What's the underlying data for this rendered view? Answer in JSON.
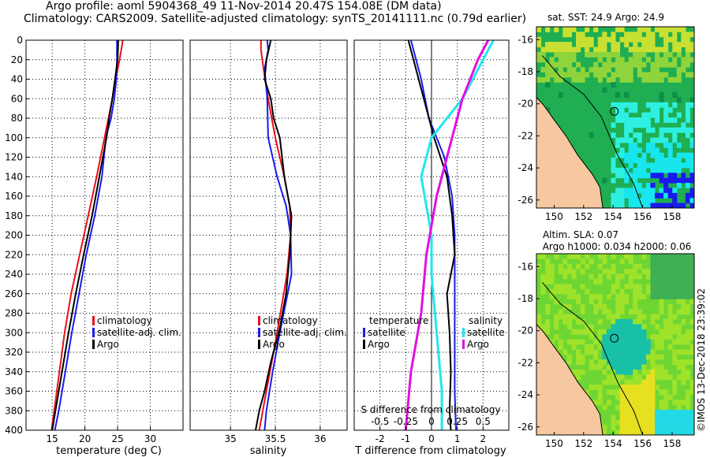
{
  "header": {
    "line1": "Argo profile: aoml 5904368_49 11-Nov-2014 20.47S 154.08E (DM data)",
    "line2": "Climatology: CARS2009. Satellite-adjusted climatology: synTS_20141111.nc (0.79d earlier)"
  },
  "colors": {
    "red": "#e8101a",
    "blue": "#1a1aee",
    "black": "#000000",
    "cyan": "#22e6ee",
    "magenta": "#e010e0",
    "land": "#f5c8a0"
  },
  "chart_data": [
    {
      "type": "line",
      "name": "temperature",
      "xlabel": "temperature (deg C)",
      "ylabel": "",
      "xlim": [
        11,
        35
      ],
      "ylim": [
        400,
        0
      ],
      "xticks": [
        15,
        20,
        25,
        30
      ],
      "yticks": [
        0,
        20,
        40,
        60,
        80,
        100,
        120,
        140,
        160,
        180,
        200,
        220,
        240,
        260,
        280,
        300,
        320,
        340,
        360,
        380,
        400
      ],
      "legend": [
        "climatology",
        "satellite-adj. clim.",
        "Argo"
      ],
      "series": [
        {
          "name": "climatology",
          "color": "red",
          "depth": [
            0,
            20,
            40,
            60,
            80,
            100,
            140,
            180,
            220,
            260,
            300,
            340,
            380,
            400
          ],
          "values": [
            25.8,
            25.3,
            24.7,
            24.2,
            23.6,
            23.0,
            21.8,
            20.5,
            19.2,
            17.9,
            16.9,
            16.1,
            15.3,
            14.9
          ]
        },
        {
          "name": "satellite-adj. clim.",
          "color": "blue",
          "depth": [
            0,
            20,
            40,
            60,
            80,
            100,
            140,
            180,
            220,
            260,
            300,
            340,
            380,
            400
          ],
          "values": [
            24.9,
            24.9,
            24.8,
            24.5,
            24.0,
            23.2,
            22.6,
            21.5,
            20.2,
            19.1,
            18.0,
            17.0,
            16.0,
            15.4
          ]
        },
        {
          "name": "Argo",
          "color": "black",
          "depth": [
            0,
            20,
            40,
            60,
            80,
            100,
            140,
            180,
            220,
            260,
            300,
            340,
            380,
            400
          ],
          "values": [
            25.1,
            25.0,
            24.6,
            24.2,
            23.7,
            23.3,
            22.2,
            21.1,
            19.8,
            18.6,
            17.5,
            16.5,
            15.5,
            15.0
          ]
        }
      ]
    },
    {
      "type": "line",
      "name": "salinity",
      "xlabel": "salinity",
      "ylabel": "",
      "xlim": [
        34.55,
        36.3
      ],
      "ylim": [
        400,
        0
      ],
      "xticks": [
        35,
        35.5,
        36
      ],
      "xtick_labels": [
        "35",
        "35.5",
        "36"
      ],
      "legend": [
        "climatology",
        "satellite-adj. clim.",
        "Argo"
      ],
      "series": [
        {
          "name": "climatology",
          "color": "red",
          "depth": [
            0,
            10,
            30,
            60,
            100,
            140,
            170,
            200,
            240,
            300,
            340,
            380,
            400
          ],
          "values": [
            35.34,
            35.34,
            35.37,
            35.42,
            35.5,
            35.6,
            35.66,
            35.67,
            35.63,
            35.52,
            35.44,
            35.36,
            35.32
          ]
        },
        {
          "name": "satellite-adj. clim.",
          "color": "blue",
          "depth": [
            0,
            10,
            30,
            60,
            100,
            140,
            170,
            200,
            240,
            300,
            340,
            380,
            400
          ],
          "values": [
            35.41,
            35.42,
            35.38,
            35.41,
            35.42,
            35.52,
            35.62,
            35.67,
            35.68,
            35.55,
            35.47,
            35.4,
            35.38
          ]
        },
        {
          "name": "Argo",
          "color": "black",
          "depth": [
            0,
            20,
            40,
            60,
            80,
            100,
            140,
            180,
            220,
            260,
            300,
            330,
            360,
            380,
            400
          ],
          "values": [
            35.45,
            35.4,
            35.38,
            35.45,
            35.48,
            35.55,
            35.6,
            35.68,
            35.66,
            35.62,
            35.54,
            35.45,
            35.38,
            35.32,
            35.28
          ]
        }
      ]
    },
    {
      "type": "line",
      "name": "difference",
      "xlabel": "T difference from climatology",
      "xlabel2": "S difference from climatology",
      "xlim": [
        -3.0,
        3.0
      ],
      "ylim": [
        400,
        0
      ],
      "xticks": [
        -2,
        -1,
        0,
        1,
        2
      ],
      "s_xticks": [
        -0.5,
        -0.25,
        0,
        0.25,
        0.5
      ],
      "s_xtick_labels": [
        "-0.5",
        "-0.25",
        "0",
        "0.25",
        "0.5"
      ],
      "legend": {
        "temperature_title": "temperature",
        "salinity_title": "salinity",
        "t_items": [
          "satellite",
          "Argo"
        ],
        "s_items": [
          "satellite",
          "Argo"
        ]
      },
      "series": [
        {
          "name": "T satellite",
          "color": "blue",
          "depth": [
            0,
            40,
            80,
            120,
            160,
            200,
            260,
            320,
            360,
            400
          ],
          "values": [
            -0.8,
            -0.4,
            -0.1,
            0.5,
            0.8,
            0.9,
            0.9,
            0.9,
            0.9,
            0.95
          ]
        },
        {
          "name": "T Argo",
          "color": "black",
          "depth": [
            0,
            30,
            60,
            100,
            140,
            180,
            220,
            260,
            300,
            340,
            380,
            400
          ],
          "values": [
            -0.9,
            -0.6,
            -0.3,
            0.1,
            0.6,
            0.8,
            0.9,
            0.6,
            0.7,
            0.75,
            0.7,
            0.75
          ]
        },
        {
          "name": "S satellite",
          "color": "cyan",
          "depth": [
            0,
            20,
            60,
            100,
            140,
            200,
            240,
            300,
            360,
            400
          ],
          "values": [
            0.6,
            0.5,
            0.3,
            0.0,
            -0.1,
            0.0,
            0.0,
            0.05,
            0.1,
            0.1
          ]
        },
        {
          "name": "S Argo",
          "color": "magenta",
          "depth": [
            0,
            20,
            60,
            100,
            160,
            220,
            280,
            340,
            400
          ],
          "values": [
            0.55,
            0.45,
            0.3,
            0.2,
            0.05,
            -0.05,
            -0.1,
            -0.2,
            -0.25
          ]
        }
      ]
    },
    {
      "type": "heatmap",
      "name": "sst-map",
      "title": "sat. SST: 24.9 Argo: 24.9",
      "xlim": [
        148.8,
        159.5
      ],
      "ylim": [
        -26.5,
        -15.2
      ],
      "xticks": [
        150,
        152,
        154,
        156,
        158
      ],
      "yticks": [
        -16,
        -18,
        -20,
        -22,
        -24,
        -26
      ],
      "ytick_labels": [
        "-16",
        "-18",
        "-20",
        "-22",
        "-24",
        "-26"
      ],
      "argo_position": [
        154.08,
        -20.47
      ]
    },
    {
      "type": "heatmap",
      "name": "sla-map",
      "title": "Altim. SLA: 0.07",
      "subtitle": "Argo h1000: 0.034 h2000: 0.06",
      "xlim": [
        148.8,
        159.5
      ],
      "ylim": [
        -26.5,
        -15.2
      ],
      "xticks": [
        150,
        152,
        154,
        156,
        158
      ],
      "yticks": [
        -16,
        -18,
        -20,
        -22,
        -24,
        -26
      ],
      "ytick_labels": [
        "-16",
        "-18",
        "-20",
        "-22",
        "-24",
        "-26"
      ],
      "argo_position": [
        154.08,
        -20.47
      ]
    }
  ],
  "footer": {
    "credit": "©IMOS 13-Dec-2018 23:39:02"
  }
}
